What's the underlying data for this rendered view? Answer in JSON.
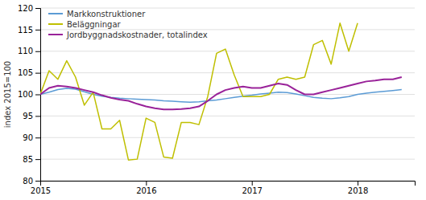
{
  "chart_data": {
    "type": "line",
    "ylabel": "index 2015=100",
    "x": [
      2015,
      2015.0833333333333,
      2015.1666666666667,
      2015.25,
      2015.3333333333333,
      2015.4166666666667,
      2015.5,
      2015.5833333333333,
      2015.6666666666667,
      2015.75,
      2015.8333333333333,
      2015.9166666666667,
      2016,
      2016.0833333333333,
      2016.1666666666667,
      2016.25,
      2016.3333333333333,
      2016.4166666666667,
      2016.5,
      2016.5833333333333,
      2016.6666666666667,
      2016.75,
      2016.8333333333333,
      2016.9166666666667,
      2017,
      2017.0833333333333,
      2017.1666666666667,
      2017.25,
      2017.3333333333333,
      2017.4166666666667,
      2017.5,
      2017.5833333333333,
      2017.6666666666667,
      2017.75,
      2017.8333333333333,
      2017.9166666666667,
      2018,
      2018.0833333333333,
      2018.1666666666667,
      2018.25,
      2018.3333333333333,
      2018.4166666666667
    ],
    "series": [
      {
        "name": "Markkonstruktioner",
        "color": "#5b9bd5",
        "values": [
          100.0,
          100.5,
          101.1,
          101.4,
          101.2,
          100.6,
          100.0,
          99.6,
          99.3,
          99.1,
          99.0,
          98.9,
          98.8,
          98.7,
          98.5,
          98.4,
          98.3,
          98.2,
          98.3,
          98.5,
          98.7,
          99.0,
          99.3,
          99.6,
          99.8,
          100.1,
          100.3,
          100.5,
          100.4,
          100.1,
          99.7,
          99.3,
          99.1,
          99.0,
          99.2,
          99.5,
          100.0,
          100.3,
          100.5,
          100.7,
          100.9,
          101.1
        ]
      },
      {
        "name": "Beläggningar",
        "color": "#bfbf00",
        "values": [
          100.0,
          105.5,
          103.5,
          107.8,
          104.0,
          97.5,
          100.5,
          92.0,
          92.0,
          94.0,
          84.8,
          85.0,
          94.5,
          93.5,
          85.5,
          85.2,
          93.5,
          93.5,
          93.0,
          99.5,
          109.5,
          110.5,
          104.5,
          99.5,
          99.5,
          99.5,
          100.0,
          103.5,
          104.0,
          103.5,
          104.0,
          111.5,
          112.5,
          107.0,
          116.5,
          110.0,
          116.5,
          null,
          null,
          null,
          null,
          null
        ]
      },
      {
        "name": "Jordbyggnadskostnader, totalindex",
        "color": "#992299",
        "values": [
          100.0,
          101.5,
          102.0,
          101.8,
          101.5,
          101.0,
          100.5,
          99.8,
          99.2,
          98.8,
          98.5,
          97.8,
          97.2,
          96.8,
          96.5,
          96.5,
          96.6,
          96.8,
          97.2,
          98.5,
          100.0,
          101.0,
          101.5,
          101.8,
          101.5,
          101.5,
          102.0,
          102.5,
          102.2,
          101.0,
          100.0,
          100.0,
          100.5,
          101.0,
          101.5,
          102.0,
          102.5,
          103.0,
          103.2,
          103.5,
          103.5,
          104.0
        ]
      }
    ],
    "xlim": [
      2015.0,
      2018.54
    ],
    "xticks": [
      2015,
      2016,
      2017,
      2018
    ],
    "ylim": [
      80,
      120
    ],
    "yticks": [
      80,
      85,
      90,
      95,
      100,
      105,
      110,
      115,
      120
    ],
    "grid": true,
    "legend": "upper left"
  }
}
